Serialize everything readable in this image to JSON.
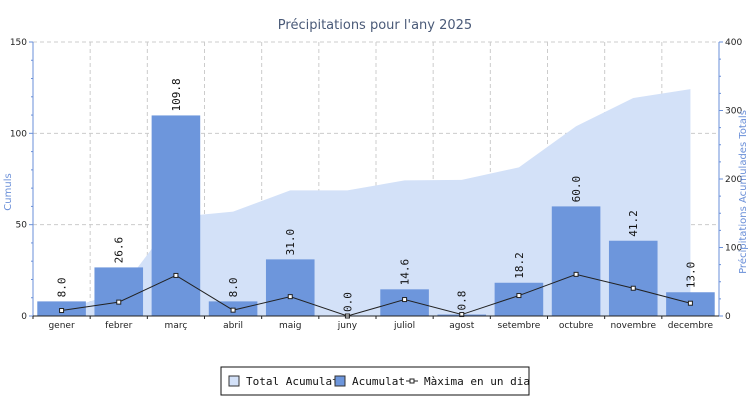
{
  "chart_data": {
    "type": "bar",
    "title": "Précipitations pour l'any 2025",
    "ylabel_left": "Cumuls",
    "ylabel_right": "Précipitations Acumulades Totals",
    "ylim_left": [
      0,
      150
    ],
    "ylim_right": [
      0,
      400
    ],
    "yticks_left": [
      0,
      50,
      100,
      150
    ],
    "yticks_right": [
      0,
      100,
      200,
      300,
      400
    ],
    "grid": true,
    "legend_position": "bottom",
    "categories": [
      "gener",
      "febrer",
      "març",
      "abril",
      "maig",
      "juny",
      "juliol",
      "agost",
      "setembre",
      "octubre",
      "novembre",
      "decembre"
    ],
    "series": [
      {
        "name": "Total Acumulat",
        "type": "area",
        "axis": "right",
        "color": "#d3e1f8",
        "values": [
          8.0,
          34.6,
          144.4,
          152.4,
          183.4,
          183.4,
          198.0,
          198.8,
          217.0,
          277.0,
          318.2,
          331.2
        ]
      },
      {
        "name": "Acumulat",
        "type": "bar",
        "axis": "left",
        "color": "#6d96dc",
        "values": [
          8.0,
          26.6,
          109.8,
          8.0,
          31.0,
          0.0,
          14.6,
          0.8,
          18.2,
          60.0,
          41.2,
          13.0
        ],
        "labels": [
          "8.0",
          "26.6",
          "109.8",
          "8.0",
          "31.0",
          "0.0",
          "14.6",
          "0.8",
          "18.2",
          "60.0",
          "41.2",
          "13.0"
        ]
      },
      {
        "name": "Màxima en un dia",
        "type": "line",
        "axis": "left",
        "color": "#222222",
        "values": [
          3.0,
          7.6,
          22.2,
          3.2,
          10.6,
          0.0,
          9.0,
          0.8,
          11.2,
          22.8,
          15.2,
          7.0
        ]
      }
    ]
  },
  "legend": {
    "items": [
      "Total Acumulat",
      "Acumulat",
      "Màxima en un dia"
    ]
  }
}
